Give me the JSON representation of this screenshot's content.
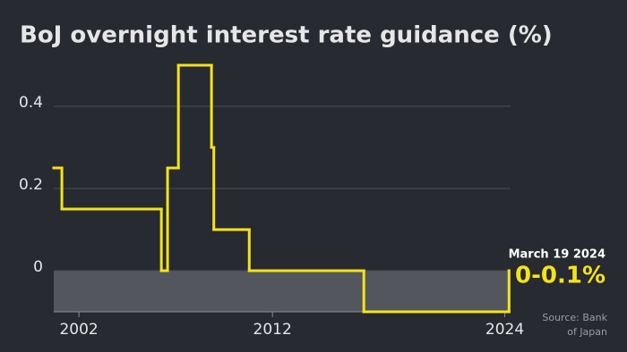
{
  "chart_data": {
    "type": "step",
    "title": "BoJ overnight interest rate guidance (%)",
    "x": [
      2000.7,
      2001.12,
      2006.26,
      2006.58,
      2007.14,
      2008.85,
      2008.97,
      2010.8,
      2016.72,
      2024.22
    ],
    "values": [
      0.25,
      0.15,
      0,
      0.25,
      0.5,
      0.3,
      0.1,
      0,
      -0.1,
      0
    ],
    "color": "#f4e21a",
    "xlim": [
      2000.7,
      2024.3
    ],
    "xticks": [
      2002,
      2012,
      2024
    ],
    "ylim": [
      -0.1,
      0.55
    ],
    "yticks": [
      0,
      0.2,
      0.4
    ],
    "grid": true,
    "annotation_date": "March 19 2024",
    "annotation_value": "0-0.1%",
    "source": "Source: Bank of Japan"
  }
}
